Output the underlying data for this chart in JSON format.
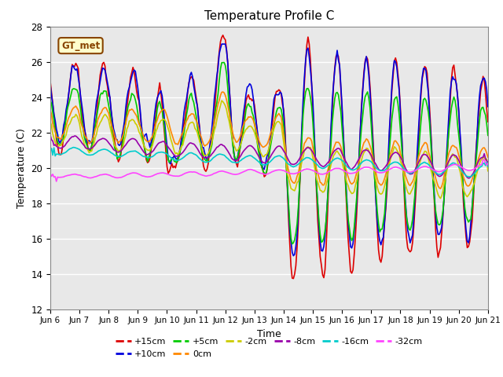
{
  "title": "Temperature Profile C",
  "xlabel": "Time",
  "ylabel": "Temperature (C)",
  "ylim": [
    12,
    28
  ],
  "xlim": [
    0,
    360
  ],
  "bg_color": "#e8e8e8",
  "series": {
    "+15cm": {
      "color": "#dd0000",
      "lw": 1.2
    },
    "+10cm": {
      "color": "#0000dd",
      "lw": 1.2
    },
    "+5cm": {
      "color": "#00cc00",
      "lw": 1.2
    },
    "0cm": {
      "color": "#ff8800",
      "lw": 1.2
    },
    "-2cm": {
      "color": "#cccc00",
      "lw": 1.2
    },
    "-8cm": {
      "color": "#9900aa",
      "lw": 1.2
    },
    "-16cm": {
      "color": "#00cccc",
      "lw": 1.2
    },
    "-32cm": {
      "color": "#ff44ff",
      "lw": 1.2
    }
  },
  "xtick_labels": [
    "Jun 6",
    "Jun 7",
    "Jun 8",
    "Jun 9",
    "Jun 10",
    "Jun 11",
    "Jun 12",
    "Jun 13",
    "Jun 14",
    "Jun 15",
    "Jun 16",
    "Jun 17",
    "Jun 18",
    "Jun 19",
    "Jun 20",
    "Jun 21"
  ],
  "xtick_positions": [
    0,
    24,
    48,
    72,
    96,
    120,
    144,
    168,
    192,
    216,
    240,
    264,
    288,
    312,
    336,
    360
  ],
  "ytick_labels": [
    "12",
    "14",
    "16",
    "18",
    "20",
    "22",
    "24",
    "26",
    "28"
  ],
  "ytick_positions": [
    12,
    14,
    16,
    18,
    20,
    22,
    24,
    26,
    28
  ],
  "annotation_text": "GT_met",
  "annotation_bg": "#ffffcc",
  "annotation_border": "#884400",
  "legend_order": [
    "+15cm",
    "+10cm",
    "+5cm",
    "0cm",
    "-2cm",
    "-8cm",
    "-16cm",
    "-32cm"
  ]
}
